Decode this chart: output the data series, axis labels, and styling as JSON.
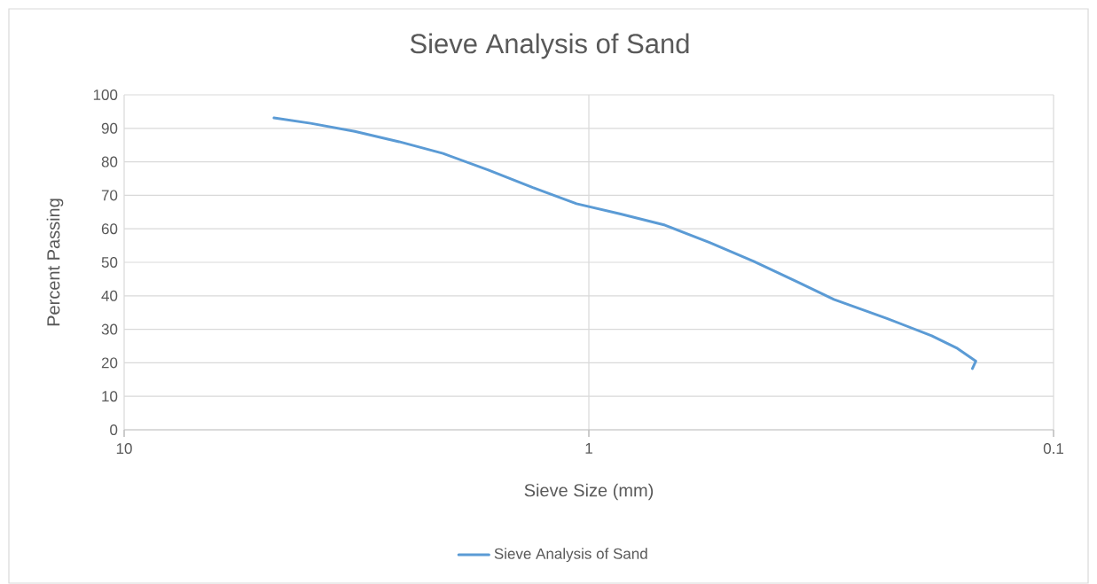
{
  "chart_data": {
    "type": "line",
    "title": "Sieve Analysis of Sand",
    "xlabel": "Sieve Size (mm)",
    "ylabel": "Percent Passing",
    "log": "x",
    "xlim": [
      10,
      0.1
    ],
    "xticks": [
      10,
      1,
      0.1
    ],
    "ylim": [
      0,
      100
    ],
    "yticks": [
      0,
      10,
      20,
      30,
      40,
      50,
      60,
      70,
      80,
      90,
      100
    ],
    "grid": true,
    "legend": "bottom",
    "marker": "none",
    "line_style": "solid",
    "x": [
      4.76,
      3.97,
      3.19,
      2.56,
      2.06,
      1.65,
      1.32,
      1.063,
      0.854,
      0.686,
      0.55,
      0.442,
      0.355,
      0.297,
      0.229,
      0.183,
      0.161,
      0.147,
      0.1495
    ],
    "series": [
      {
        "name": "Sieve Analysis of Sand",
        "color": "#5b9bd5",
        "values": [
          93.1,
          91.5,
          89.1,
          86.0,
          82.5,
          77.6,
          72.3,
          67.5,
          64.4,
          61.1,
          55.9,
          50.3,
          44.1,
          38.9,
          33.3,
          28.1,
          24.3,
          20.5,
          18.3
        ]
      }
    ]
  }
}
